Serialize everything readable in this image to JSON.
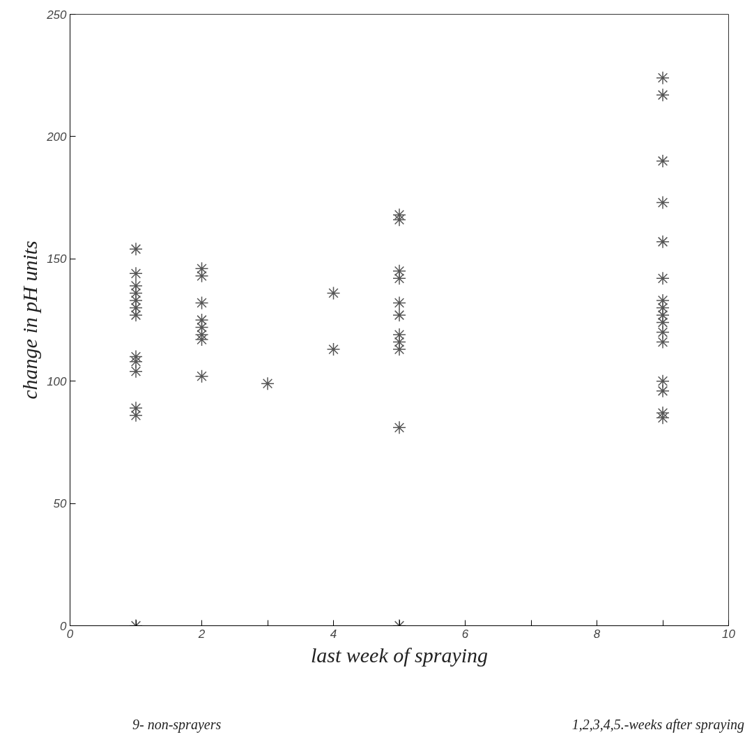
{
  "chart_data": {
    "type": "scatter",
    "xlabel": "last week of spraying",
    "ylabel": "change in pH units",
    "x": [
      1,
      1,
      1,
      1,
      1,
      1,
      1,
      1,
      1,
      1,
      1,
      1,
      1,
      2,
      2,
      2,
      2,
      2,
      2,
      2,
      2,
      3,
      4,
      4,
      5,
      5,
      5,
      5,
      5,
      5,
      5,
      5,
      5,
      5,
      5,
      9,
      9,
      9,
      9,
      9,
      9,
      9,
      9,
      9,
      9,
      9,
      9,
      9,
      9,
      9,
      9
    ],
    "values": [
      154,
      144,
      139,
      136,
      133,
      130,
      127,
      110,
      108,
      104,
      89,
      86,
      0,
      146,
      143,
      132,
      125,
      122,
      119,
      117,
      102,
      99,
      136,
      113,
      168,
      166,
      145,
      142,
      132,
      127,
      119,
      116,
      113,
      81,
      0,
      224,
      217,
      190,
      173,
      157,
      142,
      133,
      130,
      127,
      124,
      120,
      116,
      100,
      96,
      87,
      85
    ],
    "color": "#555555",
    "marker": "cross",
    "grid": false,
    "xlim": [
      0,
      10
    ],
    "ylim": [
      0,
      250
    ],
    "xticks": [
      0,
      {
        "value": 1,
        "label": null
      },
      2,
      {
        "value": 3,
        "label": null
      },
      4,
      {
        "value": 5,
        "label": null
      },
      6,
      {
        "value": 7,
        "label": null
      },
      8,
      {
        "value": 9,
        "label": null
      },
      10
    ],
    "yticks": [
      0,
      50,
      100,
      150,
      200,
      250
    ],
    "annotations": [
      "9- non-sprayers",
      "1,2,3,4,5.-weeks after spraying"
    ]
  }
}
